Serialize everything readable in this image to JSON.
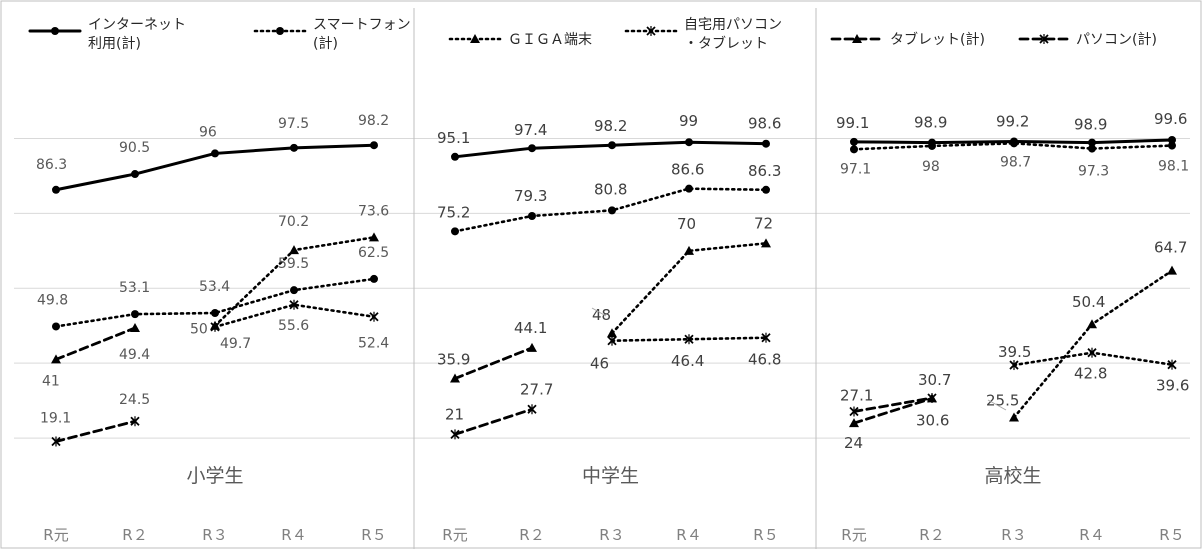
{
  "legend": [
    {
      "key": "internet",
      "label_lines": [
        "インターネット",
        "利用(計)"
      ],
      "style": "solid"
    },
    {
      "key": "smartphone",
      "label_lines": [
        "スマートフォン",
        "(計)"
      ],
      "style": "dotted-circle"
    },
    {
      "key": "giga",
      "label_lines": [
        "ＧＩＧＡ端末"
      ],
      "style": "dotted-triangle"
    },
    {
      "key": "homepc",
      "label_lines": [
        "自宅用パソコン",
        "・タブレット"
      ],
      "style": "dotted-x"
    },
    {
      "key": "tablet",
      "label_lines": [
        "タブレット(計)"
      ],
      "style": "dashed-triangle"
    },
    {
      "key": "pc",
      "label_lines": [
        "パソコン(計)"
      ],
      "style": "dashed-x"
    }
  ],
  "chart_data": {
    "type": "line",
    "x": [
      "R元",
      "R２",
      "R３",
      "R４",
      "R５"
    ],
    "ylim": [
      0,
      110
    ],
    "grid": true,
    "panels": [
      {
        "title": "小学生",
        "series": [
          {
            "key": "internet",
            "values": [
              86.3,
              90.5,
              96,
              97.5,
              98.2
            ]
          },
          {
            "key": "smartphone",
            "values": [
              49.8,
              53.1,
              53.4,
              59.5,
              62.5
            ]
          },
          {
            "key": "giga",
            "values": [
              null,
              null,
              50,
              70.2,
              73.6
            ]
          },
          {
            "key": "homepc",
            "values": [
              null,
              null,
              49.7,
              55.6,
              52.4
            ]
          },
          {
            "key": "tablet",
            "values": [
              41,
              49.4,
              null,
              null,
              null
            ]
          },
          {
            "key": "pc",
            "values": [
              19.1,
              24.5,
              null,
              null,
              null
            ]
          }
        ]
      },
      {
        "title": "中学生",
        "series": [
          {
            "key": "internet",
            "values": [
              95.1,
              97.4,
              98.2,
              99,
              98.6
            ]
          },
          {
            "key": "smartphone",
            "values": [
              75.2,
              79.3,
              80.8,
              86.6,
              86.3
            ]
          },
          {
            "key": "giga",
            "values": [
              null,
              null,
              48,
              70,
              72
            ]
          },
          {
            "key": "homepc",
            "values": [
              null,
              null,
              46,
              46.4,
              46.8
            ]
          },
          {
            "key": "tablet",
            "values": [
              35.9,
              44.1,
              null,
              null,
              null
            ]
          },
          {
            "key": "pc",
            "values": [
              21,
              27.7,
              null,
              null,
              null
            ]
          }
        ]
      },
      {
        "title": "高校生",
        "series": [
          {
            "key": "internet",
            "values": [
              99.1,
              98.9,
              99.2,
              98.9,
              99.6
            ]
          },
          {
            "key": "smartphone",
            "values": [
              97.1,
              98,
              98.7,
              97.3,
              98.1
            ]
          },
          {
            "key": "giga",
            "values": [
              null,
              null,
              25.5,
              50.4,
              64.7
            ]
          },
          {
            "key": "homepc",
            "values": [
              null,
              null,
              39.5,
              42.8,
              39.6
            ]
          },
          {
            "key": "tablet",
            "values": [
              24,
              30.6,
              null,
              null,
              null
            ]
          },
          {
            "key": "pc",
            "values": [
              27.1,
              30.7,
              null,
              null,
              null
            ]
          }
        ]
      }
    ]
  }
}
